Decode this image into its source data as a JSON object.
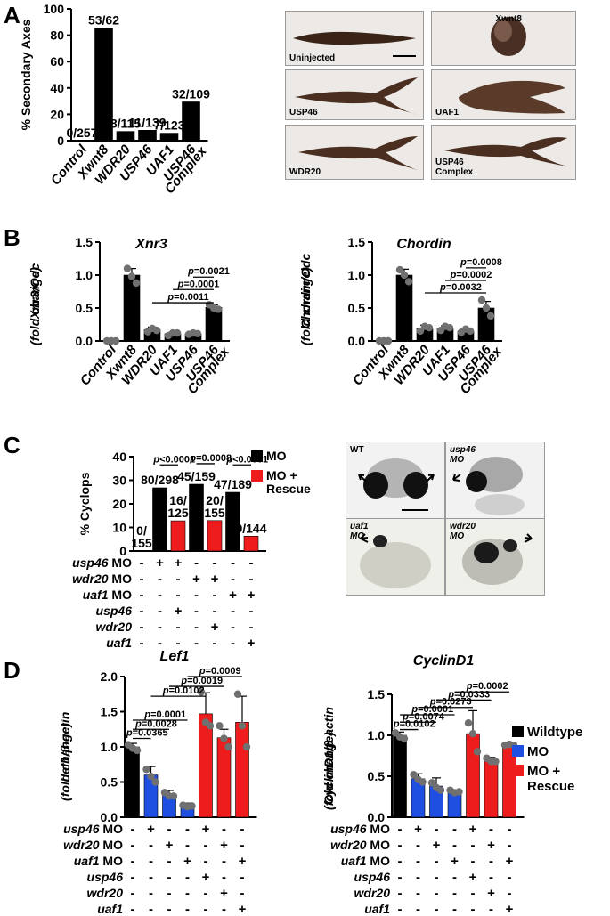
{
  "panels": {
    "A": {
      "letter": "A"
    },
    "B": {
      "letter": "B"
    },
    "C": {
      "letter": "C"
    },
    "D": {
      "letter": "D"
    }
  },
  "photos_A": [
    {
      "label": "Uninjected",
      "scale_bar": true
    },
    {
      "label": "Xwnt8"
    },
    {
      "label": "USP46"
    },
    {
      "label": "UAF1"
    },
    {
      "label": "WDR20"
    },
    {
      "label": "USP46\nComplex"
    }
  ],
  "photos_C": [
    {
      "label": "WT",
      "scale_bar": true
    },
    {
      "label": "usp46\nMO"
    },
    {
      "label": "uaf1\nMO"
    },
    {
      "label": "wdr20\nMO"
    }
  ],
  "grid_rows": {
    "C": [
      "usp46 MO",
      "wdr20 MO",
      "uaf1 MO",
      "usp46",
      "wdr20",
      "uaf1"
    ],
    "D": [
      "usp46 MO",
      "wdr20 MO",
      "uaf1 MO",
      "usp46",
      "wdr20",
      "uaf1"
    ]
  },
  "legend_D": [
    {
      "label": "Wildtype",
      "color": "#000000"
    },
    {
      "label": "MO",
      "color": "#1f4fe0"
    },
    {
      "label": "MO +\nRescue",
      "color": "#ee1c1c"
    }
  ],
  "chart_data": [
    {
      "id": "A",
      "type": "bar",
      "ylabel": "% Secondary Axes",
      "ylim": [
        0,
        100
      ],
      "yticks": [
        0,
        20,
        40,
        60,
        80,
        100
      ],
      "categories": [
        "Control",
        "Xwnt8",
        "WDR20",
        "USP46",
        "UAF1",
        "USP46\nComplex"
      ],
      "values": [
        0,
        85.5,
        7.0,
        7.9,
        5.7,
        29.4
      ],
      "data_labels": [
        "0/257",
        "53/62",
        "8/115",
        "11/139",
        "7/123",
        "32/109"
      ],
      "colors": [
        "#000000",
        "#000000",
        "#000000",
        "#000000",
        "#000000",
        "#000000"
      ]
    },
    {
      "id": "B-left",
      "type": "bar",
      "title": "Xnr3",
      "ylabel": "Xnr3/Odc\n(fold change)",
      "ylim": [
        0,
        1.5
      ],
      "yticks": [
        0.0,
        0.5,
        1.0,
        1.5
      ],
      "categories": [
        "Control",
        "Xwnt8",
        "WDR20",
        "UAF1",
        "USP46",
        "USP46\nComplex"
      ],
      "values": [
        0.0,
        1.0,
        0.17,
        0.11,
        0.11,
        0.51
      ],
      "errors": [
        0.0,
        0.1,
        0.04,
        0.02,
        0.02,
        0.04
      ],
      "points": [
        [
          0.0,
          0.0,
          0.0
        ],
        [
          1.1,
          0.98,
          0.88
        ],
        [
          0.14,
          0.19,
          0.16
        ],
        [
          0.08,
          0.12,
          0.12
        ],
        [
          0.1,
          0.12,
          0.11
        ],
        [
          0.55,
          0.5,
          0.48
        ]
      ],
      "colors": [
        "#000000",
        "#000000",
        "#000000",
        "#000000",
        "#000000",
        "#000000"
      ],
      "sig": [
        {
          "from": 2,
          "to": 5,
          "y": 0.58,
          "label": "p=0.0011"
        },
        {
          "from": 3,
          "to": 5,
          "y": 0.78,
          "label": "p=0.0001"
        },
        {
          "from": 4,
          "to": 5,
          "y": 0.97,
          "label": "p=0.0021"
        }
      ]
    },
    {
      "id": "B-right",
      "type": "bar",
      "title": "Chordin",
      "ylabel": "Chordin/Odc\n(fold change)",
      "ylim": [
        0,
        1.5
      ],
      "yticks": [
        0.0,
        0.5,
        1.0,
        1.5
      ],
      "categories": [
        "Control",
        "Xwnt8",
        "WDR20",
        "UAF1",
        "USP46",
        "USP46\nComplex"
      ],
      "values": [
        0.0,
        1.0,
        0.19,
        0.19,
        0.15,
        0.5
      ],
      "errors": [
        0.0,
        0.09,
        0.05,
        0.04,
        0.03,
        0.1
      ],
      "points": [
        [
          0.0,
          0.0,
          0.0
        ],
        [
          1.08,
          1.0,
          0.9
        ],
        [
          0.15,
          0.22,
          0.2
        ],
        [
          0.16,
          0.22,
          0.2
        ],
        [
          0.13,
          0.18,
          0.15
        ],
        [
          0.62,
          0.5,
          0.38
        ]
      ],
      "colors": [
        "#000000",
        "#000000",
        "#000000",
        "#000000",
        "#000000",
        "#000000"
      ],
      "sig": [
        {
          "from": 2,
          "to": 5,
          "y": 0.73,
          "label": "p=0.0032"
        },
        {
          "from": 3,
          "to": 5,
          "y": 0.92,
          "label": "p=0.0002"
        },
        {
          "from": 4,
          "to": 5,
          "y": 1.11,
          "label": "p=0.0008"
        }
      ]
    },
    {
      "id": "C",
      "type": "bar",
      "ylabel": "% Cyclops",
      "ylim": [
        0,
        40
      ],
      "yticks": [
        0,
        10,
        20,
        30,
        40
      ],
      "values": [
        0,
        26.8,
        12.8,
        28.3,
        12.9,
        24.9,
        6.3
      ],
      "data_labels": [
        "0/\n155",
        "80/298",
        "16/\n125",
        "45/159",
        "20/\n155",
        "47/189",
        "9/144"
      ],
      "colors": [
        "#000000",
        "#000000",
        "#ee1c1c",
        "#000000",
        "#ee1c1c",
        "#000000",
        "#ee1c1c"
      ],
      "legend": [
        {
          "label": "MO",
          "color": "#000000"
        },
        {
          "label": "MO +\nRescue",
          "color": "#ee1c1c"
        }
      ],
      "sig": [
        {
          "from": 1,
          "to": 2,
          "y": 36.5,
          "label": "p<0.0001"
        },
        {
          "from": 3,
          "to": 4,
          "y": 37.0,
          "label": "p=0.0008"
        },
        {
          "from": 5,
          "to": 6,
          "y": 36.5,
          "label": "p<0.0001"
        }
      ],
      "grid": [
        [
          "-",
          "+",
          "+",
          "-",
          "-",
          "-",
          "-"
        ],
        [
          "-",
          "-",
          "-",
          "+",
          "+",
          "-",
          "-"
        ],
        [
          "-",
          "-",
          "-",
          "-",
          "-",
          "+",
          "+"
        ],
        [
          "-",
          "-",
          "+",
          "-",
          "-",
          "-",
          "-"
        ],
        [
          "-",
          "-",
          "-",
          "-",
          "+",
          "-",
          "-"
        ],
        [
          "-",
          "-",
          "-",
          "-",
          "-",
          "-",
          "+"
        ]
      ]
    },
    {
      "id": "D-left",
      "type": "bar",
      "title": "Lef1",
      "ylabel": "Lef1/β-actin\n(fold change)",
      "ylim": [
        0,
        2.0
      ],
      "yticks": [
        0.0,
        0.5,
        1.0,
        1.5,
        2.0
      ],
      "values": [
        1.0,
        0.6,
        0.33,
        0.17,
        1.47,
        1.13,
        1.35
      ],
      "errors": [
        0.05,
        0.12,
        0.05,
        0.03,
        0.3,
        0.12,
        0.37
      ],
      "points": [
        [
          1.03,
          0.98,
          0.95
        ],
        [
          0.68,
          0.58,
          0.5
        ],
        [
          0.35,
          0.3,
          0.3
        ],
        [
          0.17,
          0.15,
          0.16
        ],
        [
          1.78,
          1.35,
          1.3
        ],
        [
          1.3,
          1.12,
          1.0
        ],
        [
          1.75,
          1.3,
          1.0
        ]
      ],
      "colors": [
        "#000000",
        "#1f4fe0",
        "#1f4fe0",
        "#1f4fe0",
        "#ee1c1c",
        "#ee1c1c",
        "#ee1c1c"
      ],
      "sig": [
        {
          "from": 0,
          "to": 1,
          "y": 1.12,
          "label": "p=0.0365"
        },
        {
          "from": 0,
          "to": 2,
          "y": 1.25,
          "label": "p=0.0028"
        },
        {
          "from": 0,
          "to": 3,
          "y": 1.38,
          "label": "p=0.0001"
        },
        {
          "from": 1,
          "to": 4,
          "y": 1.72,
          "label": "p=0.0102"
        },
        {
          "from": 2,
          "to": 5,
          "y": 1.86,
          "label": "p=0.0019"
        },
        {
          "from": 3,
          "to": 6,
          "y": 2.0,
          "label": "p=0.0009"
        }
      ],
      "grid": [
        [
          "-",
          "+",
          "-",
          "-",
          "+",
          "-",
          "-"
        ],
        [
          "-",
          "-",
          "+",
          "-",
          "-",
          "+",
          "-"
        ],
        [
          "-",
          "-",
          "-",
          "+",
          "-",
          "-",
          "+"
        ],
        [
          "-",
          "-",
          "-",
          "-",
          "+",
          "-",
          "-"
        ],
        [
          "-",
          "-",
          "-",
          "-",
          "-",
          "+",
          "-"
        ],
        [
          "-",
          "-",
          "-",
          "-",
          "-",
          "-",
          "+"
        ]
      ]
    },
    {
      "id": "D-right",
      "type": "bar",
      "title": "CyclinD1",
      "ylabel": "CyclinD1/β-actin\n(fold change)",
      "ylim": [
        0,
        1.5
      ],
      "yticks": [
        0.0,
        0.5,
        1.0,
        1.5
      ],
      "values": [
        1.0,
        0.47,
        0.38,
        0.31,
        1.02,
        0.69,
        0.88
      ],
      "errors": [
        0.04,
        0.06,
        0.1,
        0.02,
        0.28,
        0.04,
        0.01
      ],
      "points": [
        [
          1.03,
          0.98,
          0.96
        ],
        [
          0.52,
          0.46,
          0.43
        ],
        [
          0.42,
          0.36,
          0.33
        ],
        [
          0.33,
          0.3,
          0.31
        ],
        [
          1.15,
          1.02,
          0.8
        ],
        [
          0.72,
          0.68,
          0.68
        ],
        [
          0.88,
          0.89,
          0.88
        ]
      ],
      "colors": [
        "#000000",
        "#1f4fe0",
        "#1f4fe0",
        "#1f4fe0",
        "#ee1c1c",
        "#ee1c1c",
        "#ee1c1c"
      ],
      "sig": [
        {
          "from": 0,
          "to": 1,
          "y": 1.07,
          "label": "p=0.0102"
        },
        {
          "from": 0,
          "to": 2,
          "y": 1.16,
          "label": "p=0.0074"
        },
        {
          "from": 0,
          "to": 3,
          "y": 1.25,
          "label": "p=0.0001"
        },
        {
          "from": 1,
          "to": 4,
          "y": 1.34,
          "label": "p=0.0273"
        },
        {
          "from": 2,
          "to": 5,
          "y": 1.43,
          "label": "p=0.0333"
        },
        {
          "from": 3,
          "to": 6,
          "y": 1.53,
          "label": "p=0.0002"
        }
      ],
      "grid": [
        [
          "-",
          "+",
          "-",
          "-",
          "+",
          "-",
          "-"
        ],
        [
          "-",
          "-",
          "+",
          "-",
          "-",
          "+",
          "-"
        ],
        [
          "-",
          "-",
          "-",
          "+",
          "-",
          "-",
          "+"
        ],
        [
          "-",
          "-",
          "-",
          "-",
          "+",
          "-",
          "-"
        ],
        [
          "-",
          "-",
          "-",
          "-",
          "-",
          "+",
          "-"
        ],
        [
          "-",
          "-",
          "-",
          "-",
          "-",
          "-",
          "+"
        ]
      ]
    }
  ]
}
